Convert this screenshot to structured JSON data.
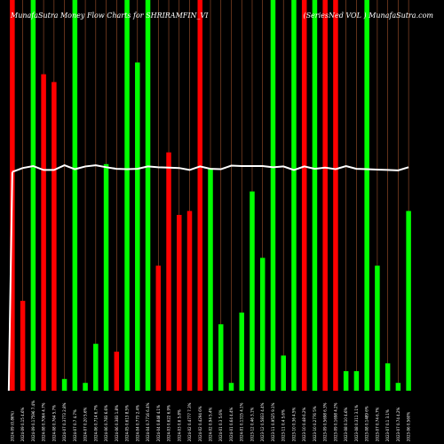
{
  "chart_data": {
    "type": "bar",
    "title_left": "MunafaSutra  Money Flow  Charts for SHRIRAMFIN_VI",
    "title_right": "(SeriesNed  VOL         )  MunafaSutra.com",
    "colors": {
      "background": "#000000",
      "gridline": "#a0522d",
      "green": "#00ff00",
      "red": "#ff0000",
      "line": "#ffffff"
    },
    "ylim": [
      0,
      100
    ],
    "bars": [
      {
        "value": 100,
        "color": "red",
        "label": "2024-09 (0.86%)"
      },
      {
        "value": 23,
        "color": "red",
        "label": "2024-09 0.15 4.6%"
      },
      {
        "value": 100,
        "color": "green",
        "label": "2024-09 0.17596 7.4%"
      },
      {
        "value": 81,
        "color": "red",
        "label": "2024-08 0.7064 4.7%"
      },
      {
        "value": 79,
        "color": "red",
        "label": "2024-08 0.764 5.7%"
      },
      {
        "value": 3,
        "color": "green",
        "label": "2024-07 0.3773 2.8%"
      },
      {
        "value": 100,
        "color": "green",
        "label": "2024-07 0.7 4.7%"
      },
      {
        "value": 2,
        "color": "green",
        "label": "2024-07 0.20 5.6%"
      },
      {
        "value": 12,
        "color": "green",
        "label": "2024-06 0.714 6.7%"
      },
      {
        "value": 58,
        "color": "green",
        "label": "2024-06 0.783 6.6%"
      },
      {
        "value": 10,
        "color": "red",
        "label": "2024-06 0.383 1.8%"
      },
      {
        "value": 100,
        "color": "green",
        "label": "2024-05 0.613 8.5%"
      },
      {
        "value": 84,
        "color": "green",
        "label": "2024-04 0.773 2.4%"
      },
      {
        "value": 100,
        "color": "green",
        "label": "2024-04 0.7716 6.4%"
      },
      {
        "value": 32,
        "color": "red",
        "label": "2024-04 0.848 4.1%"
      },
      {
        "value": 61,
        "color": "red",
        "label": "2024-03 0.622 6.9%"
      },
      {
        "value": 45,
        "color": "red",
        "label": "2024-03 0.6 5.8%"
      },
      {
        "value": 46,
        "color": "red",
        "label": "2024-02 0.4777 7.3%"
      },
      {
        "value": 100,
        "color": "red",
        "label": "2024-02 0.4294 6%"
      },
      {
        "value": 57,
        "color": "green",
        "label": "2024-02 0.94 5.4%"
      },
      {
        "value": 17,
        "color": "green",
        "label": "2024-01 0.3 5.6%"
      },
      {
        "value": 2,
        "color": "green",
        "label": "2024-01 0.64 4.4%"
      },
      {
        "value": 20,
        "color": "green",
        "label": "2024-01 0.1315 4.1%"
      },
      {
        "value": 51,
        "color": "green",
        "label": "2023-12 0.46 3.1%"
      },
      {
        "value": 34,
        "color": "green",
        "label": "2023-12 0.5833 4.4%"
      },
      {
        "value": 100,
        "color": "green",
        "label": "2023-11 0.9525 9.1%"
      },
      {
        "value": 9,
        "color": "green",
        "label": "2023-11 0.4 5.6%"
      },
      {
        "value": 100,
        "color": "green",
        "label": "2023-10 0.36 4.5%"
      },
      {
        "value": 100,
        "color": "red",
        "label": "2023-10 0.48 6.2%"
      },
      {
        "value": 100,
        "color": "green",
        "label": "2023-10 0.2776 5%"
      },
      {
        "value": 100,
        "color": "red",
        "label": "2023-09 0.5698 6.3%"
      },
      {
        "value": 100,
        "color": "red",
        "label": "2023-09 0.1698 4.2%"
      },
      {
        "value": 5,
        "color": "green",
        "label": "2023-08 0.10 4.6%"
      },
      {
        "value": 5,
        "color": "green",
        "label": "2023-08 0.311 3.1%"
      },
      {
        "value": 100,
        "color": "green",
        "label": "2023-08 0.1489 6%"
      },
      {
        "value": 32,
        "color": "green",
        "label": "2023-07 0.74 6.7%"
      },
      {
        "value": 7,
        "color": "green",
        "label": "2023-07 0.1 3.1%"
      },
      {
        "value": 2,
        "color": "green",
        "label": "2023-07 0.74 4.2%"
      },
      {
        "value": 46,
        "color": "green",
        "label": "2023-06 0.560%"
      }
    ],
    "line_values": [
      56,
      57,
      57.5,
      56.5,
      56.5,
      57.7,
      56.7,
      57.4,
      57.7,
      57.2,
      56.8,
      56.7,
      56.8,
      57.4,
      57.2,
      57.1,
      57,
      56.5,
      57.4,
      56.8,
      56.7,
      57.6,
      57.5,
      57.5,
      57.5,
      57.2,
      57.4,
      56.5,
      57.4,
      56.8,
      57.1,
      56.7,
      57.5,
      56.8,
      56.7,
      56.6,
      56.5,
      56.4,
      57.2
    ]
  }
}
